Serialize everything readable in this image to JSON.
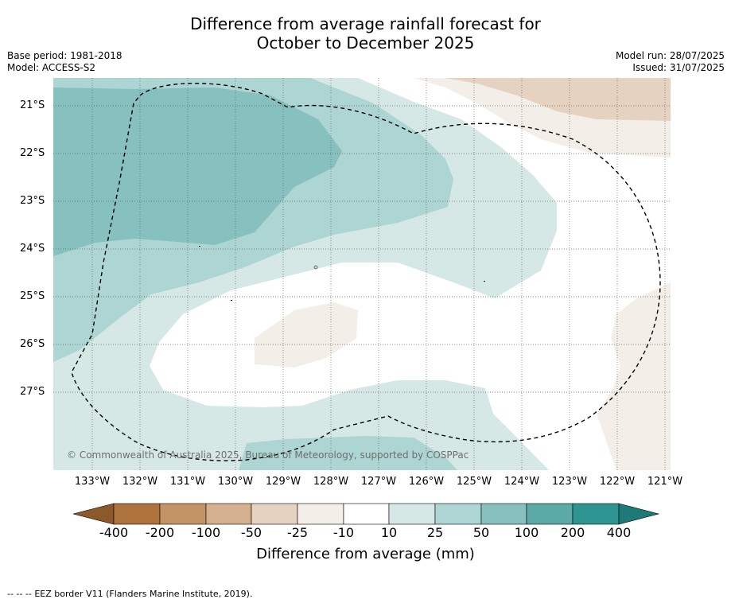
{
  "title": {
    "line1": "Difference from average rainfall forecast for",
    "line2": "October to December 2025"
  },
  "meta_left": {
    "base_period": "Base period: 1981-2018",
    "model": "Model: ACCESS-S2"
  },
  "meta_right": {
    "model_run": "Model run: 28/07/2025",
    "issued": "Issued: 31/07/2025"
  },
  "map": {
    "latitude_labels": [
      "21°S",
      "22°S",
      "23°S",
      "24°S",
      "25°S",
      "26°S",
      "27°S"
    ],
    "longitude_labels": [
      "133°W",
      "132°W",
      "131°W",
      "130°W",
      "129°W",
      "128°W",
      "127°W",
      "126°W",
      "125°W",
      "124°W",
      "123°W",
      "122°W",
      "121°W"
    ],
    "copyright": "© Commonwealth of Australia 2025, Bureau of Meteorology, supported by COSPPac",
    "gridlines": "dotted",
    "eez_border_style": "dashed"
  },
  "colorbar": {
    "tick_labels": [
      "-400",
      "-200",
      "-100",
      "-50",
      "-25",
      "-10",
      "10",
      "25",
      "50",
      "100",
      "200",
      "400"
    ],
    "colors": [
      "#8c5a2a",
      "#ae733c",
      "#c29465",
      "#d4b08f",
      "#e5d2c0",
      "#f4eee9",
      "#ffffff",
      "#d5e8e6",
      "#acd5d3",
      "#86c0bf",
      "#5caaa8",
      "#2f9592",
      "#1f7a77"
    ],
    "title": "Difference from average (mm)"
  },
  "footer": {
    "legend_symbol": "--  --  --",
    "text": "EEZ border V11 (Flanders Marine Institute, 2019)."
  }
}
